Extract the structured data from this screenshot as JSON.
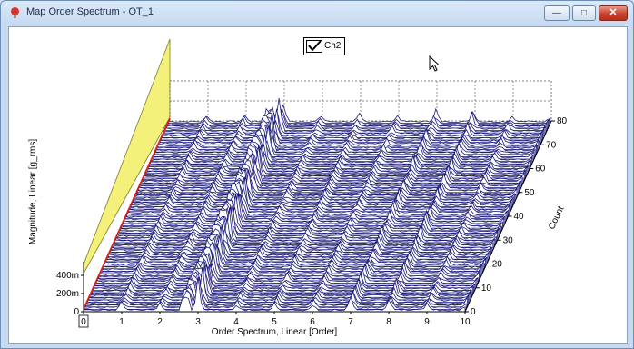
{
  "window": {
    "title": "Map Order Spectrum - OT_1",
    "app_icon": "app-icon",
    "buttons": {
      "minimize": "—",
      "maximize": "□",
      "close": "✕"
    }
  },
  "legend": {
    "checked": true,
    "label": "Ch2"
  },
  "chart_data": {
    "type": "waterfall",
    "x": {
      "label": "Order Spectrum, Linear [Order]",
      "ticks": [
        "0",
        "1",
        "2",
        "3",
        "4",
        "5",
        "6",
        "7",
        "8",
        "9",
        "10"
      ],
      "range": [
        0,
        10
      ]
    },
    "y": {
      "label": "Magnitude, Linear [g_rms]",
      "ticks": [
        "0",
        "200m",
        "400m"
      ]
    },
    "z": {
      "label": "Count",
      "ticks": [
        "0",
        "10",
        "20",
        "30",
        "40",
        "50",
        "60",
        "70",
        "80"
      ],
      "range": [
        0,
        80
      ]
    },
    "series_name": "Ch2",
    "slices": 80,
    "peak_orders": [
      1.0,
      2.0,
      3.0,
      4.0,
      5.0,
      6.0,
      7.0,
      8.0,
      9.0,
      10.0
    ],
    "grid": true,
    "back_wall_color": "#f4f17a",
    "trace_color": "#1c1c7a",
    "axis_line_color": "#e02010"
  }
}
